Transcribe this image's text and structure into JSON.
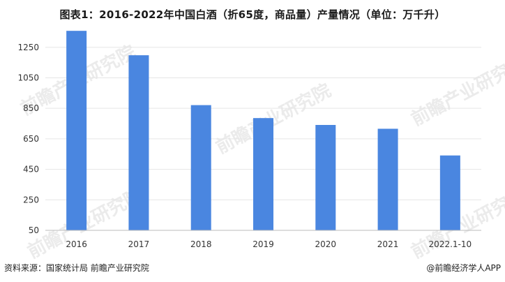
{
  "title": "图表1：2016-2022年中国白酒（折65度，商品量）产量情况（单位：万千升）",
  "source": "资料来源：国家统计局 前瞻产业研究院",
  "credit": "@前瞻经济学人APP",
  "watermark": "前瞻产业研究院",
  "colors": {
    "bar": "#4a86e0",
    "grid": "#e6e6e6",
    "axis": "#bbbbbb"
  },
  "chart_data": {
    "type": "bar",
    "title": "图表1：2016-2022年中国白酒（折65度，商品量）产量情况（单位：万千升）",
    "categories": [
      "2016",
      "2017",
      "2018",
      "2019",
      "2020",
      "2021",
      "2022.1-10"
    ],
    "values": [
      1358,
      1198,
      871,
      786,
      741,
      716,
      541
    ],
    "yticks": [
      "50",
      "250",
      "450",
      "650",
      "850",
      "1050",
      "1250"
    ],
    "ylim": [
      50,
      1400
    ],
    "grid": true,
    "xlabel": "",
    "ylabel": ""
  }
}
